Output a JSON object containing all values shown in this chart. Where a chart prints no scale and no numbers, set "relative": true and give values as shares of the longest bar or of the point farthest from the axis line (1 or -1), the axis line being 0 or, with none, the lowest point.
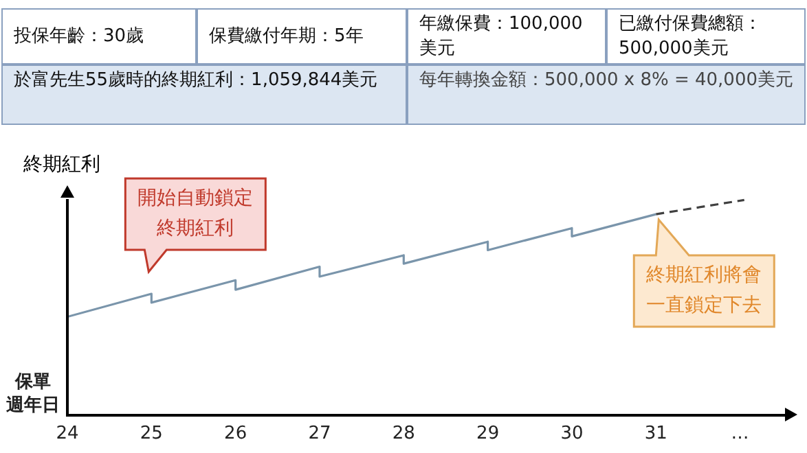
{
  "chart_data": {
    "type": "line",
    "relative": true,
    "ylabel": "終期紅利",
    "xlabel": "保單週年日",
    "xlim": [
      24,
      32.6
    ],
    "xticks": [
      24,
      25,
      26,
      27,
      28,
      29,
      30,
      31,
      {
        "value": 32,
        "label": "…"
      }
    ],
    "grid": false,
    "legend": false,
    "marker": "none",
    "series": [
      {
        "color": "#7a95ab",
        "line_style": "solid",
        "x": [
          24,
          25,
          25,
          26,
          26,
          27,
          27,
          28,
          28,
          29,
          29,
          30,
          30,
          31
        ],
        "values": [
          0.457,
          0.564,
          0.523,
          0.627,
          0.583,
          0.69,
          0.644,
          0.743,
          0.704,
          0.806,
          0.767,
          0.869,
          0.831,
          0.934
        ]
      },
      {
        "color": "#404040",
        "line_style": "dashed",
        "x": [
          31,
          32.05
        ],
        "values": [
          0.934,
          1
        ]
      }
    ],
    "annotations": [
      "投保年齡：30歲",
      "保費繳付年期：5年",
      "年繳保費：100,000美元",
      "已繳付保費總額：500,000美元",
      "於富先生55歲時的終期紅利：1,059,844美元",
      "每年轉換金額：500,000 x 8% = 40,000美元",
      {
        "text": "開始自動鎖定終期紅利",
        "x": 25,
        "y": 0.564
      },
      {
        "text": "終期紅利將會一直鎖定下去",
        "x": 31,
        "y": 0.934
      }
    ]
  }
}
